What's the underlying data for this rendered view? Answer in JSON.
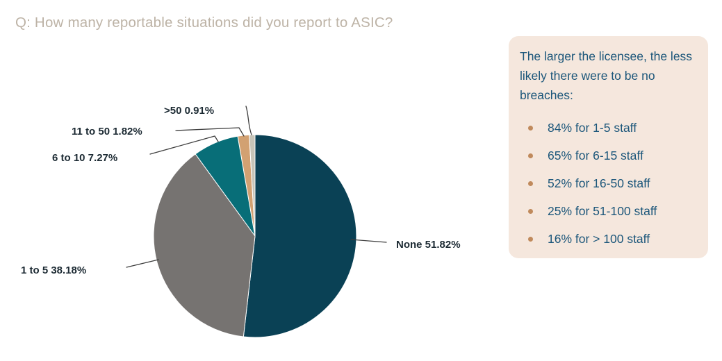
{
  "page": {
    "title": "Q: How many reportable situations did you report to ASIC?",
    "title_color": "#bdb3a6",
    "background": "#ffffff"
  },
  "chart_data": {
    "type": "pie",
    "title": "Q: How many reportable situations did you report to ASIC?",
    "categories": [
      "None",
      "1 to 5",
      "6 to 10",
      "11 to 50",
      ">50"
    ],
    "values": [
      51.82,
      38.18,
      7.27,
      1.82,
      0.91
    ],
    "unit": "%",
    "labels": [
      "None 51.82%",
      "1 to 5 38.18%",
      "6 to 10 7.27%",
      "11 to 50 1.82%",
      ">50 0.91%"
    ],
    "colors": [
      "#0a4155",
      "#767371",
      "#086e78",
      "#d2a172",
      "#c7c4b8"
    ],
    "start_angle": "12 o'clock",
    "direction": "clockwise",
    "legend_position": "none",
    "label_color": "#1c2a33",
    "leader_line_color": "#3d3d3d",
    "slice_border_color": "#ffffff"
  },
  "panel": {
    "heading": "The larger the licensee, the less likely there were to be no breaches:",
    "bullets": [
      "84% for 1-5 staff",
      "65% for 6-15 staff",
      "52% for 16-50 staff",
      "25% for 51-100 staff",
      "16% for > 100 staff"
    ],
    "background": "#f5e7dd",
    "text_color": "#1b567a",
    "bullet_color": "#c08a5c"
  }
}
